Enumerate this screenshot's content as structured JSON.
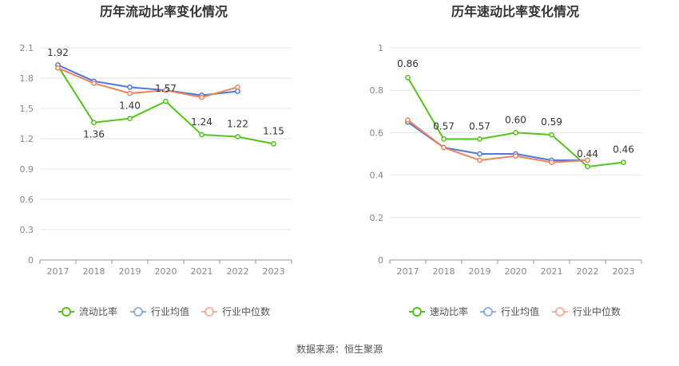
{
  "source_text": "数据来源：恒生聚源",
  "colors": {
    "company": "#52c41a",
    "industry_avg": "#4a7bdc",
    "industry_median": "#f0825a",
    "grid": "#e6e6e6",
    "axis": "#999999"
  },
  "chart_data": [
    {
      "type": "line",
      "title": "历年流动比率变化情况",
      "categories": [
        "2017",
        "2018",
        "2019",
        "2020",
        "2021",
        "2022",
        "2023"
      ],
      "ylim": [
        0,
        2.1
      ],
      "yticks": [
        "0",
        "0.3",
        "0.6",
        "0.9",
        "1.2",
        "1.5",
        "1.8",
        "2.1"
      ],
      "grid": true,
      "legend_position": "bottom",
      "series": [
        {
          "name": "流动比率",
          "values": [
            1.92,
            1.36,
            1.4,
            1.57,
            1.24,
            1.22,
            1.15
          ],
          "labels": [
            "1.92",
            "1.36",
            "1.40",
            "1.57",
            "1.24",
            "1.22",
            "1.15"
          ]
        },
        {
          "name": "行业均值",
          "values": [
            1.93,
            1.77,
            1.71,
            1.68,
            1.63,
            1.67,
            null
          ]
        },
        {
          "name": "行业中位数",
          "values": [
            1.9,
            1.75,
            1.65,
            1.68,
            1.61,
            1.71,
            null
          ]
        }
      ]
    },
    {
      "type": "line",
      "title": "历年速动比率变化情况",
      "categories": [
        "2017",
        "2018",
        "2019",
        "2020",
        "2021",
        "2022",
        "2023"
      ],
      "ylim": [
        0,
        1
      ],
      "yticks": [
        "0",
        "0.2",
        "0.4",
        "0.6",
        "0.8",
        "1"
      ],
      "grid": true,
      "legend_position": "bottom",
      "series": [
        {
          "name": "速动比率",
          "values": [
            0.86,
            0.57,
            0.57,
            0.6,
            0.59,
            0.44,
            0.46
          ],
          "labels": [
            "0.86",
            "0.57",
            "0.57",
            "0.60",
            "0.59",
            "0.44",
            "0.46"
          ]
        },
        {
          "name": "行业均值",
          "values": [
            0.65,
            0.53,
            0.5,
            0.5,
            0.47,
            0.47,
            null
          ]
        },
        {
          "name": "行业中位数",
          "values": [
            0.66,
            0.53,
            0.47,
            0.49,
            0.46,
            0.47,
            null
          ]
        }
      ]
    }
  ]
}
